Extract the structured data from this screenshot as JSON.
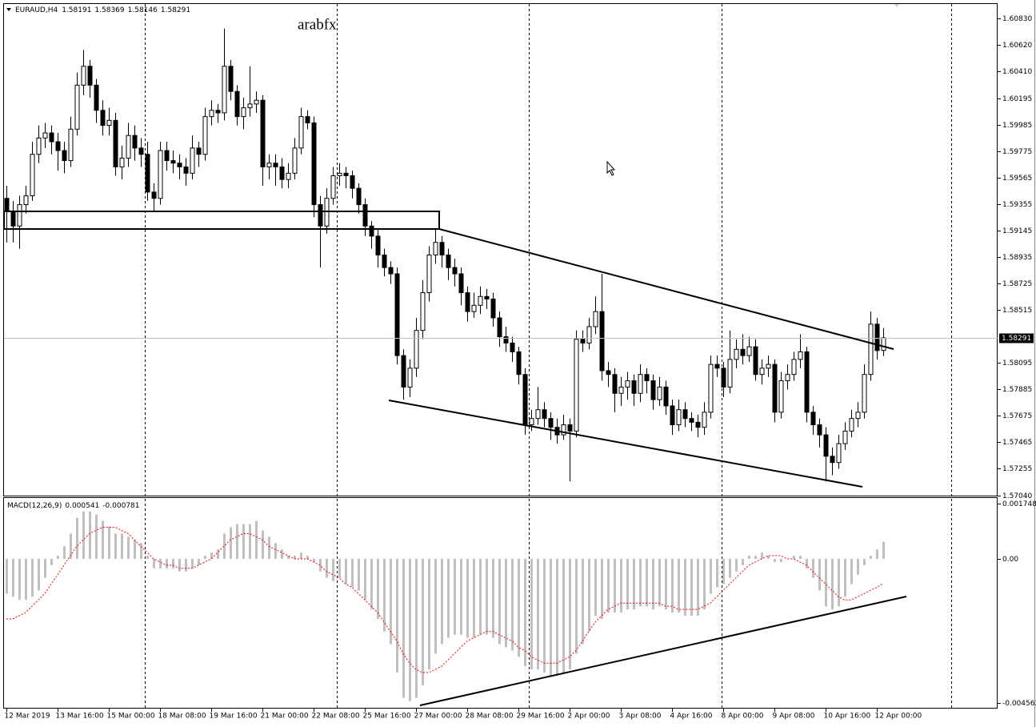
{
  "chart_data": {
    "type": "candlestick",
    "symbol": "EURAUD,H4",
    "watermark": "arabfx",
    "colors": {
      "up": "#ffffff",
      "down": "#000000",
      "outline": "#000000"
    },
    "ylim": [
      1.57037,
      1.60945
    ],
    "yticks": [
      {
        "value": 1.6083,
        "label": "1.60830"
      },
      {
        "value": 1.6062,
        "label": "1.60620"
      },
      {
        "value": 1.6041,
        "label": "1.60410"
      },
      {
        "value": 1.60195,
        "label": "1.60195"
      },
      {
        "value": 1.59985,
        "label": "1.59985"
      },
      {
        "value": 1.59775,
        "label": "1.59775"
      },
      {
        "value": 1.59565,
        "label": "1.59565"
      },
      {
        "value": 1.59355,
        "label": "1.59355"
      },
      {
        "value": 1.59145,
        "label": "1.59145"
      },
      {
        "value": 1.58935,
        "label": "1.58935"
      },
      {
        "value": 1.58725,
        "label": "1.58725"
      },
      {
        "value": 1.58515,
        "label": "1.58515"
      },
      {
        "value": 1.58095,
        "label": "1.58095"
      },
      {
        "value": 1.57885,
        "label": "1.57885"
      },
      {
        "value": 1.57675,
        "label": "1.57675"
      },
      {
        "value": 1.57465,
        "label": "1.57465"
      },
      {
        "value": 1.57255,
        "label": "1.57255"
      },
      {
        "value": 1.5704,
        "label": "1.57040"
      }
    ],
    "xticks": [
      {
        "value": 0,
        "label": "12 Mar 2019"
      },
      {
        "value": 8,
        "label": "13 Mar 16:00"
      },
      {
        "value": 16,
        "label": "15 Mar 00:00"
      },
      {
        "value": 24,
        "label": "18 Mar 08:00"
      },
      {
        "value": 32,
        "label": "19 Mar 16:00"
      },
      {
        "value": 40,
        "label": "21 Mar 00:00"
      },
      {
        "value": 48,
        "label": "22 Mar 08:00"
      },
      {
        "value": 56,
        "label": "25 Mar 16:00"
      },
      {
        "value": 64,
        "label": "27 Mar 00:00"
      },
      {
        "value": 72,
        "label": "28 Mar 08:00"
      },
      {
        "value": 80,
        "label": "29 Mar 16:00"
      },
      {
        "value": 88,
        "label": "2 Apr 00:00"
      },
      {
        "value": 96,
        "label": "3 Apr 08:00"
      },
      {
        "value": 104,
        "label": "4 Apr 16:00"
      },
      {
        "value": 112,
        "label": "8 Apr 00:00"
      },
      {
        "value": 120,
        "label": "9 Apr 08:00"
      },
      {
        "value": 128,
        "label": "10 Apr 16:00"
      },
      {
        "value": 136,
        "label": "12 Apr 00:00"
      }
    ],
    "ohlc": [
      [
        1.594,
        1.595,
        1.5905,
        1.593
      ],
      [
        1.593,
        1.5938,
        1.5905,
        1.5918
      ],
      [
        1.5918,
        1.5942,
        1.59,
        1.5935
      ],
      [
        1.5935,
        1.595,
        1.5928,
        1.5942
      ],
      [
        1.5942,
        1.5985,
        1.5938,
        1.5975
      ],
      [
        1.5975,
        1.5998,
        1.5968,
        1.5988
      ],
      [
        1.5988,
        1.6,
        1.598,
        1.5992
      ],
      [
        1.5992,
        1.5998,
        1.5975,
        1.5985
      ],
      [
        1.5985,
        1.5992,
        1.5962,
        1.5978
      ],
      [
        1.5978,
        1.5985,
        1.596,
        1.597
      ],
      [
        1.597,
        1.6005,
        1.5965,
        1.5995
      ],
      [
        1.5995,
        1.604,
        1.599,
        1.603
      ],
      [
        1.603,
        1.6058,
        1.6022,
        1.6045
      ],
      [
        1.6045,
        1.605,
        1.602,
        1.603
      ],
      [
        1.603,
        1.6035,
        1.6,
        1.601
      ],
      [
        1.601,
        1.6018,
        1.599,
        1.5998
      ],
      [
        1.5998,
        1.6012,
        1.599,
        1.6002
      ],
      [
        1.6002,
        1.6008,
        1.5958,
        1.5965
      ],
      [
        1.5965,
        1.5982,
        1.5955,
        1.5972
      ],
      [
        1.5972,
        1.6,
        1.5965,
        1.599
      ],
      [
        1.599,
        1.5998,
        1.597,
        1.598
      ],
      [
        1.598,
        1.5988,
        1.5965,
        1.5975
      ],
      [
        1.5975,
        1.5985,
        1.5938,
        1.5945
      ],
      [
        1.5945,
        1.5952,
        1.593,
        1.594
      ],
      [
        1.594,
        1.5985,
        1.5935,
        1.5978
      ],
      [
        1.5978,
        1.5985,
        1.5962,
        1.597
      ],
      [
        1.597,
        1.5978,
        1.596,
        1.5968
      ],
      [
        1.5968,
        1.5975,
        1.5955,
        1.5965
      ],
      [
        1.5965,
        1.5972,
        1.595,
        1.596
      ],
      [
        1.596,
        1.599,
        1.5955,
        1.598
      ],
      [
        1.598,
        1.5985,
        1.5965,
        1.5975
      ],
      [
        1.5975,
        1.6012,
        1.597,
        1.6005
      ],
      [
        1.6005,
        1.6018,
        1.5998,
        1.601
      ],
      [
        1.601,
        1.6015,
        1.6,
        1.6008
      ],
      [
        1.6008,
        1.6075,
        1.6002,
        1.6045
      ],
      [
        1.6045,
        1.605,
        1.6018,
        1.6025
      ],
      [
        1.6025,
        1.603,
        1.5998,
        1.6005
      ],
      [
        1.6005,
        1.602,
        1.5995,
        1.6012
      ],
      [
        1.6012,
        1.6045,
        1.6005,
        1.6015
      ],
      [
        1.6015,
        1.6025,
        1.6008,
        1.6018
      ],
      [
        1.6018,
        1.6022,
        1.595,
        1.5965
      ],
      [
        1.5965,
        1.5975,
        1.5955,
        1.5968
      ],
      [
        1.5968,
        1.5975,
        1.595,
        1.5965
      ],
      [
        1.5965,
        1.5972,
        1.5948,
        1.5955
      ],
      [
        1.5955,
        1.5968,
        1.5948,
        1.596
      ],
      [
        1.596,
        1.5988,
        1.5955,
        1.598
      ],
      [
        1.598,
        1.6012,
        1.5975,
        1.6005
      ],
      [
        1.6005,
        1.601,
        1.5995,
        1.6
      ],
      [
        1.6,
        1.6005,
        1.5925,
        1.5935
      ],
      [
        1.5935,
        1.5942,
        1.5885,
        1.5918
      ],
      [
        1.5918,
        1.5948,
        1.5912,
        1.594
      ],
      [
        1.594,
        1.5965,
        1.5935,
        1.5958
      ],
      [
        1.5958,
        1.5968,
        1.595,
        1.596
      ],
      [
        1.596,
        1.5965,
        1.5948,
        1.5958
      ],
      [
        1.5958,
        1.5962,
        1.594,
        1.5948
      ],
      [
        1.5948,
        1.5952,
        1.5928,
        1.5935
      ],
      [
        1.5935,
        1.594,
        1.591,
        1.5918
      ],
      [
        1.5918,
        1.5922,
        1.59,
        1.591
      ],
      [
        1.591,
        1.5915,
        1.5885,
        1.5895
      ],
      [
        1.5895,
        1.59,
        1.5878,
        1.5885
      ],
      [
        1.5885,
        1.589,
        1.5872,
        1.588
      ],
      [
        1.588,
        1.5885,
        1.5808,
        1.5815
      ],
      [
        1.5815,
        1.582,
        1.578,
        1.579
      ],
      [
        1.579,
        1.5812,
        1.5782,
        1.5805
      ],
      [
        1.5805,
        1.5845,
        1.5798,
        1.5835
      ],
      [
        1.5835,
        1.5875,
        1.5828,
        1.5865
      ],
      [
        1.5865,
        1.5902,
        1.5858,
        1.5895
      ],
      [
        1.5895,
        1.5915,
        1.5888,
        1.5905
      ],
      [
        1.5905,
        1.591,
        1.5885,
        1.5895
      ],
      [
        1.5895,
        1.59,
        1.5875,
        1.5885
      ],
      [
        1.5885,
        1.5892,
        1.587,
        1.588
      ],
      [
        1.588,
        1.5885,
        1.5855,
        1.5865
      ],
      [
        1.5865,
        1.587,
        1.5842,
        1.585
      ],
      [
        1.585,
        1.5865,
        1.5845,
        1.5855
      ],
      [
        1.5855,
        1.587,
        1.5848,
        1.5862
      ],
      [
        1.5862,
        1.5868,
        1.5852,
        1.586
      ],
      [
        1.586,
        1.5865,
        1.5838,
        1.5845
      ],
      [
        1.5845,
        1.585,
        1.5822,
        1.583
      ],
      [
        1.583,
        1.5838,
        1.5818,
        1.5825
      ],
      [
        1.5825,
        1.583,
        1.581,
        1.5818
      ],
      [
        1.5818,
        1.5822,
        1.5792,
        1.58
      ],
      [
        1.58,
        1.5805,
        1.5752,
        1.576
      ],
      [
        1.576,
        1.5772,
        1.5755,
        1.5765
      ],
      [
        1.5765,
        1.579,
        1.576,
        1.5772
      ],
      [
        1.5772,
        1.5778,
        1.5758,
        1.5765
      ],
      [
        1.5765,
        1.577,
        1.5748,
        1.5758
      ],
      [
        1.5758,
        1.5765,
        1.5745,
        1.5752
      ],
      [
        1.5752,
        1.5768,
        1.5748,
        1.576
      ],
      [
        1.576,
        1.5765,
        1.5715,
        1.5755
      ],
      [
        1.5755,
        1.5835,
        1.575,
        1.5828
      ],
      [
        1.5828,
        1.5835,
        1.5818,
        1.5825
      ],
      [
        1.5825,
        1.5845,
        1.582,
        1.5838
      ],
      [
        1.5838,
        1.5862,
        1.5832,
        1.585
      ],
      [
        1.585,
        1.588,
        1.5795,
        1.5803
      ],
      [
        1.5803,
        1.581,
        1.579,
        1.58
      ],
      [
        1.58,
        1.5805,
        1.577,
        1.5785
      ],
      [
        1.5785,
        1.5798,
        1.5775,
        1.579
      ],
      [
        1.579,
        1.5802,
        1.578,
        1.5795
      ],
      [
        1.5795,
        1.58,
        1.5775,
        1.5785
      ],
      [
        1.5785,
        1.5808,
        1.5778,
        1.58
      ],
      [
        1.58,
        1.5805,
        1.5785,
        1.5795
      ],
      [
        1.5795,
        1.58,
        1.5772,
        1.578
      ],
      [
        1.578,
        1.5798,
        1.5775,
        1.579
      ],
      [
        1.579,
        1.5795,
        1.5768,
        1.5775
      ],
      [
        1.5775,
        1.578,
        1.5752,
        1.576
      ],
      [
        1.576,
        1.578,
        1.5755,
        1.5772
      ],
      [
        1.5772,
        1.5778,
        1.5758,
        1.5765
      ],
      [
        1.5765,
        1.577,
        1.5755,
        1.5762
      ],
      [
        1.5762,
        1.5768,
        1.575,
        1.5758
      ],
      [
        1.5758,
        1.5778,
        1.5752,
        1.577
      ],
      [
        1.577,
        1.5815,
        1.5765,
        1.5808
      ],
      [
        1.5808,
        1.5815,
        1.5798,
        1.5805
      ],
      [
        1.5805,
        1.581,
        1.5782,
        1.579
      ],
      [
        1.579,
        1.5835,
        1.5785,
        1.5812
      ],
      [
        1.5812,
        1.5828,
        1.5805,
        1.582
      ],
      [
        1.582,
        1.5832,
        1.5808,
        1.5815
      ],
      [
        1.5815,
        1.583,
        1.581,
        1.5822
      ],
      [
        1.5822,
        1.5828,
        1.5795,
        1.58
      ],
      [
        1.58,
        1.5812,
        1.5792,
        1.5805
      ],
      [
        1.5805,
        1.5815,
        1.5798,
        1.5808
      ],
      [
        1.5808,
        1.5812,
        1.5762,
        1.577
      ],
      [
        1.577,
        1.5802,
        1.5765,
        1.5795
      ],
      [
        1.5795,
        1.5808,
        1.5788,
        1.58
      ],
      [
        1.58,
        1.5818,
        1.5795,
        1.5812
      ],
      [
        1.5812,
        1.5832,
        1.5805,
        1.5818
      ],
      [
        1.5818,
        1.5822,
        1.5762,
        1.577
      ],
      [
        1.577,
        1.5775,
        1.5752,
        1.576
      ],
      [
        1.576,
        1.5765,
        1.5742,
        1.5752
      ],
      [
        1.5752,
        1.5758,
        1.5715,
        1.5735
      ],
      [
        1.5735,
        1.5742,
        1.572,
        1.573
      ],
      [
        1.573,
        1.5752,
        1.5725,
        1.5745
      ],
      [
        1.5745,
        1.5762,
        1.574,
        1.5755
      ],
      [
        1.5755,
        1.5772,
        1.575,
        1.5765
      ],
      [
        1.5765,
        1.5778,
        1.5758,
        1.577
      ],
      [
        1.577,
        1.5808,
        1.5765,
        1.58
      ],
      [
        1.58,
        1.585,
        1.5795,
        1.584
      ],
      [
        1.584,
        1.5845,
        1.5812,
        1.5819
      ],
      [
        1.58191,
        1.58369,
        1.58146,
        1.58291
      ]
    ],
    "indicator": {
      "type": "macd",
      "label": "MACD(12,26,9)",
      "histogram_color": "#c0c0c0",
      "signal_color": "#ff0000",
      "ylim": [
        -0.004562,
        0.001748
      ],
      "yticks": [
        0.001748,
        {
          "value": 0,
          "label": "0.00"
        },
        -0.004562
      ],
      "histogram": [
        -0.0011,
        -0.0012,
        -0.0013,
        -0.0013,
        -0.0012,
        -0.001,
        -0.0006,
        -0.0002,
        0.0001,
        0.0004,
        0.0008,
        0.0013,
        0.0015,
        0.0015,
        0.0014,
        0.0012,
        0.001,
        0.0008,
        0.0008,
        0.0007,
        0.0006,
        0.0005,
        0.0001,
        -0.0003,
        -0.0003,
        -0.0003,
        -0.0003,
        -0.0004,
        -0.0004,
        -0.0003,
        -0.0002,
        0.0001,
        0.0002,
        0.0003,
        0.0008,
        0.001,
        0.0011,
        0.0011,
        0.0011,
        0.0012,
        0.0009,
        0.0007,
        0.0005,
        0.0003,
        0.0001,
        0.0001,
        0.0002,
        0.0001,
        -0.0001,
        -0.0004,
        -0.0006,
        -0.0007,
        -0.0006,
        -0.0008,
        -0.0009,
        -0.001,
        -0.0013,
        -0.0016,
        -0.0019,
        -0.0023,
        -0.0027,
        -0.0036,
        -0.0044,
        -0.0045,
        -0.0044,
        -0.004,
        -0.0035,
        -0.003,
        -0.0027,
        -0.0025,
        -0.0024,
        -0.0024,
        -0.0025,
        -0.0025,
        -0.0024,
        -0.0024,
        -0.0025,
        -0.0027,
        -0.0028,
        -0.0029,
        -0.0031,
        -0.0034,
        -0.0035,
        -0.0035,
        -0.0036,
        -0.0037,
        -0.0037,
        -0.0036,
        -0.0035,
        -0.003,
        -0.0027,
        -0.0023,
        -0.0018,
        -0.0019,
        -0.0017,
        -0.0017,
        -0.0017,
        -0.0016,
        -0.0016,
        -0.0015,
        -0.0015,
        -0.0016,
        -0.0015,
        -0.0016,
        -0.0017,
        -0.0017,
        -0.0018,
        -0.0018,
        -0.0018,
        -0.0016,
        -0.0011,
        -0.0009,
        -0.0008,
        -0.0006,
        -0.0004,
        -0.0002,
        0.0001,
        0.0001,
        0.0002,
        0.0001,
        -0.0001,
        -0.0001,
        0,
        0.0001,
        0.0001,
        -0.0003,
        -0.0006,
        -0.001,
        -0.0015,
        -0.0016,
        -0.0015,
        -0.0012,
        -0.0008,
        -0.0005,
        -0.0002,
        0.0001,
        0.0003,
        0.000541
      ],
      "signal": [
        -0.0019,
        -0.0019,
        -0.0018,
        -0.0017,
        -0.0015,
        -0.0013,
        -0.0011,
        -0.0008,
        -0.0005,
        -0.0002,
        0.0001,
        0.0004,
        0.0006,
        0.0008,
        0.0009,
        0.001,
        0.001,
        0.001,
        0.0009,
        0.0008,
        0.0006,
        0.0004,
        0.0002,
        0,
        -0.0001,
        -0.0002,
        -0.0002,
        -0.0003,
        -0.0003,
        -0.0003,
        -0.0002,
        -0.0001,
        0,
        0.0002,
        0.0004,
        0.0006,
        0.0007,
        0.0008,
        0.0008,
        0.0007,
        0.0006,
        0.0004,
        0.0003,
        0.0002,
        0.0001,
        0,
        0,
        0,
        -0.0001,
        -0.0002,
        -0.0004,
        -0.0005,
        -0.0006,
        -0.0008,
        -0.0009,
        -0.0011,
        -0.0013,
        -0.0015,
        -0.0017,
        -0.002,
        -0.0023,
        -0.0026,
        -0.003,
        -0.0033,
        -0.0035,
        -0.0036,
        -0.0036,
        -0.0035,
        -0.0034,
        -0.0032,
        -0.003,
        -0.0028,
        -0.0026,
        -0.0025,
        -0.0024,
        -0.0023,
        -0.0023,
        -0.0024,
        -0.0025,
        -0.0026,
        -0.0028,
        -0.0029,
        -0.0031,
        -0.0032,
        -0.0033,
        -0.0033,
        -0.0033,
        -0.0032,
        -0.0031,
        -0.0029,
        -0.0026,
        -0.0023,
        -0.002,
        -0.0018,
        -0.0016,
        -0.0015,
        -0.0014,
        -0.0014,
        -0.0014,
        -0.0014,
        -0.0014,
        -0.0014,
        -0.0014,
        -0.0015,
        -0.0015,
        -0.0016,
        -0.0016,
        -0.0016,
        -0.0016,
        -0.0015,
        -0.0014,
        -0.0012,
        -0.001,
        -0.0008,
        -0.0006,
        -0.0004,
        -0.0002,
        -0.0001,
        0,
        0.0001,
        0.0001,
        0.0001,
        0,
        0,
        -0.0001,
        -0.0002,
        -0.0004,
        -0.0006,
        -0.0008,
        -0.001,
        -0.0012,
        -0.0013,
        -0.0013,
        -0.0012,
        -0.0011,
        -0.001,
        -0.0009,
        -0.000781
      ]
    }
  }
}
